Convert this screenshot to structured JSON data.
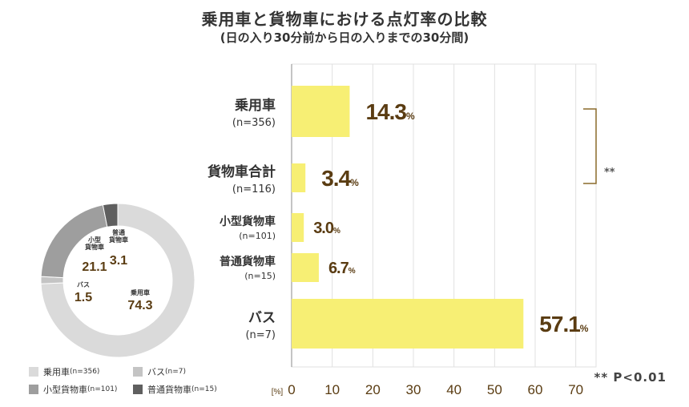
{
  "title": "乗用車と貨物車における点灯率の比較",
  "subtitle": "(日の入り30分前から日の入りまでの30分間)",
  "chart_data": [
    {
      "type": "bar",
      "orientation": "horizontal",
      "unit_label": "[%]",
      "categories": [
        {
          "name": "乗用車",
          "n": "(n=356)"
        },
        {
          "name": "貨物車合計",
          "n": "(n=116)"
        },
        {
          "name": "小型貨物車",
          "n": "(n=101)"
        },
        {
          "name": "普通貨物車",
          "n": "(n=15)"
        },
        {
          "name": "バス",
          "n": "(n=7)"
        }
      ],
      "values": [
        14.3,
        3.4,
        3.0,
        6.7,
        57.1
      ],
      "value_labels": [
        "14.3",
        "3.4",
        "3.0",
        "6.7",
        "57.1"
      ],
      "value_unit": "%",
      "xlim": [
        0,
        75
      ],
      "xticks": [
        "0",
        "10",
        "20",
        "30",
        "40",
        "50",
        "60",
        "70"
      ],
      "grid": true,
      "bar_color": "#f7ef74",
      "label_color": "#5a3c12",
      "significance": {
        "between": [
          "乗用車",
          "貨物車合計"
        ],
        "mark": "**",
        "note": "** P<0.01"
      }
    },
    {
      "type": "pie",
      "style": "donut",
      "slices": [
        {
          "name": "乗用車",
          "label": "乗用車",
          "value": 74.3,
          "value_label": "74.3",
          "color": "#dadada"
        },
        {
          "name": "バス",
          "label": "バス",
          "value": 1.5,
          "value_label": "1.5",
          "color": "#c4c4c4"
        },
        {
          "name": "小型貨物車",
          "label": "小型\n貨物車",
          "value": 21.1,
          "value_label": "21.1",
          "color": "#9e9e9e"
        },
        {
          "name": "普通貨物車",
          "label": "普通\n貨物車",
          "value": 3.1,
          "value_label": "3.1",
          "color": "#5f5f5f"
        }
      ],
      "legend": [
        {
          "name": "乗用車",
          "n": "(n=356)",
          "color": "#dadada"
        },
        {
          "name": "バス",
          "n": "(n=7)",
          "color": "#c4c4c4"
        },
        {
          "name": "小型貨物車",
          "n": "(n=101)",
          "color": "#9e9e9e"
        },
        {
          "name": "普通貨物車",
          "n": "(n=15)",
          "color": "#5f5f5f"
        }
      ],
      "value_color": "#5a3c12"
    }
  ]
}
